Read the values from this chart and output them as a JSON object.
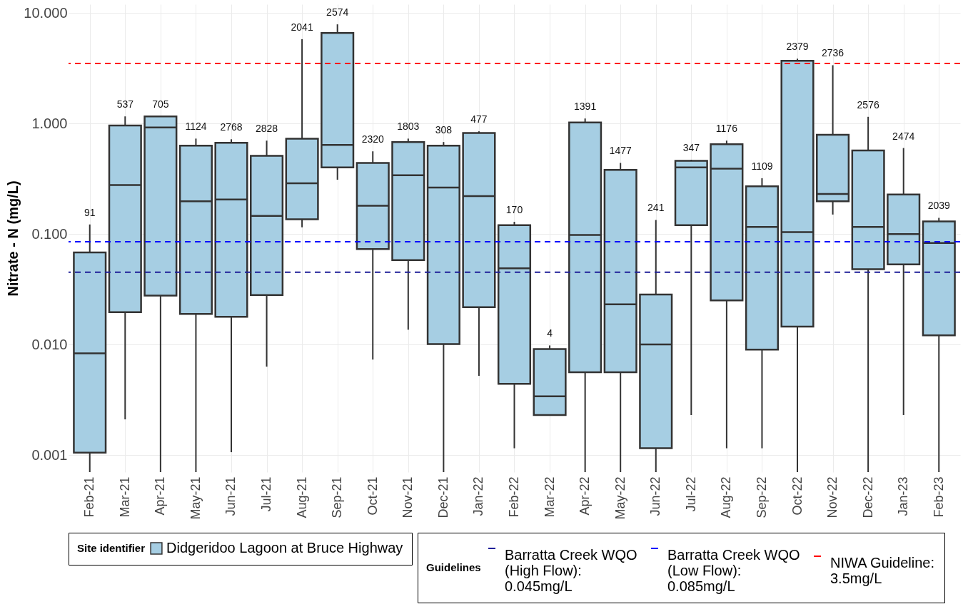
{
  "chart_data": {
    "type": "box",
    "ylabel": "Nitrate - N (mg/L)",
    "log": true,
    "grid": true,
    "legend": "bottom",
    "legend_title": "Site identifier",
    "categories": [
      "Feb-21",
      "Mar-21",
      "Apr-21",
      "May-21",
      "Jun-21",
      "Jul-21",
      "Aug-21",
      "Sep-21",
      "Oct-21",
      "Nov-21",
      "Dec-21",
      "Jan-22",
      "Feb-22",
      "Mar-22",
      "Apr-22",
      "May-22",
      "Jun-22",
      "Jul-22",
      "Aug-22",
      "Sep-22",
      "Oct-22",
      "Nov-22",
      "Dec-22",
      "Jan-23",
      "Feb-23"
    ],
    "ylim": [
      0.0007,
      12
    ],
    "yticks": [
      {
        "value": 0.001,
        "label": "0.001"
      },
      {
        "value": 0.01,
        "label": "0.010"
      },
      {
        "value": 0.1,
        "label": "0.100"
      },
      {
        "value": 1,
        "label": "1.000"
      },
      {
        "value": 10,
        "label": "10.000"
      }
    ],
    "series": [
      {
        "name": "Didgeridoo Lagoon at Bruce Highway",
        "color": "#a6cee3",
        "boxes": [
          {
            "low": 0.0007,
            "q1": 0.00105,
            "median": 0.0083,
            "q3": 0.068,
            "high": 0.122
          },
          {
            "low": 0.0021,
            "q1": 0.0196,
            "median": 0.277,
            "q3": 0.96,
            "high": 1.16
          },
          {
            "low": 0.0007,
            "q1": 0.0277,
            "median": 0.92,
            "q3": 1.16,
            "high": 1.16
          },
          {
            "low": 0.0007,
            "q1": 0.0189,
            "median": 0.198,
            "q3": 0.63,
            "high": 0.73
          },
          {
            "low": 0.00106,
            "q1": 0.0178,
            "median": 0.205,
            "q3": 0.67,
            "high": 0.72
          },
          {
            "low": 0.0063,
            "q1": 0.028,
            "median": 0.146,
            "q3": 0.51,
            "high": 0.7
          },
          {
            "low": 0.115,
            "q1": 0.136,
            "median": 0.288,
            "q3": 0.73,
            "high": 5.8
          },
          {
            "low": 0.31,
            "q1": 0.4,
            "median": 0.64,
            "q3": 6.6,
            "high": 7.9
          },
          {
            "low": 0.0073,
            "q1": 0.073,
            "median": 0.18,
            "q3": 0.44,
            "high": 0.56
          },
          {
            "low": 0.0136,
            "q1": 0.058,
            "median": 0.34,
            "q3": 0.68,
            "high": 0.73
          },
          {
            "low": 0.0007,
            "q1": 0.0101,
            "median": 0.263,
            "q3": 0.63,
            "high": 0.68
          },
          {
            "low": 0.0052,
            "q1": 0.0218,
            "median": 0.22,
            "q3": 0.82,
            "high": 0.85
          },
          {
            "low": 0.00115,
            "q1": 0.0044,
            "median": 0.049,
            "q3": 0.12,
            "high": 0.129
          },
          {
            "low": 0.0023,
            "q1": 0.0023,
            "median": 0.0034,
            "q3": 0.0091,
            "high": 0.0098
          },
          {
            "low": 0.0007,
            "q1": 0.0056,
            "median": 0.098,
            "q3": 1.02,
            "high": 1.11
          },
          {
            "low": 0.0007,
            "q1": 0.0056,
            "median": 0.0231,
            "q3": 0.38,
            "high": 0.44
          },
          {
            "low": 0.0007,
            "q1": 0.00115,
            "median": 0.01,
            "q3": 0.0283,
            "high": 0.134
          },
          {
            "low": 0.0023,
            "q1": 0.12,
            "median": 0.4,
            "q3": 0.46,
            "high": 0.47
          },
          {
            "low": 0.00115,
            "q1": 0.0251,
            "median": 0.39,
            "q3": 0.65,
            "high": 0.7
          },
          {
            "low": 0.00115,
            "q1": 0.009,
            "median": 0.116,
            "q3": 0.27,
            "high": 0.32
          },
          {
            "low": 0.0007,
            "q1": 0.0145,
            "median": 0.104,
            "q3": 3.7,
            "high": 3.86
          },
          {
            "low": 0.15,
            "q1": 0.198,
            "median": 0.23,
            "q3": 0.79,
            "high": 3.37
          },
          {
            "low": 0.0007,
            "q1": 0.048,
            "median": 0.116,
            "q3": 0.57,
            "high": 1.15
          },
          {
            "low": 0.0023,
            "q1": 0.053,
            "median": 0.1,
            "q3": 0.228,
            "high": 0.6
          },
          {
            "low": 0.0007,
            "q1": 0.0121,
            "median": 0.083,
            "q3": 0.13,
            "high": 0.14
          }
        ]
      }
    ],
    "ref_lines": [
      {
        "axis": "y",
        "value": 0.045,
        "label": "Barratta Creek WQO (High Flow): 0.045mg/L",
        "color": "#1f1f99",
        "line_style": "dashed"
      },
      {
        "axis": "y",
        "value": 0.085,
        "label": "Barratta Creek WQO (Low Flow): 0.085mg/L",
        "color": "#0000ff",
        "line_style": "dashed"
      },
      {
        "axis": "y",
        "value": 3.5,
        "label": "NIWA Guideline: 3.5mg/L",
        "color": "#ff0000",
        "line_style": "dashed"
      }
    ],
    "annotations": [
      "Guidelines",
      {
        "text": "91",
        "x": "Feb-21",
        "y": 0.122
      },
      {
        "text": "537",
        "x": "Mar-21",
        "y": 1.16
      },
      {
        "text": "705",
        "x": "Apr-21",
        "y": 1.16
      },
      {
        "text": "1124",
        "x": "May-21",
        "y": 0.73
      },
      {
        "text": "2768",
        "x": "Jun-21",
        "y": 0.72
      },
      {
        "text": "2828",
        "x": "Jul-21",
        "y": 0.7
      },
      {
        "text": "2041",
        "x": "Aug-21",
        "y": 5.8
      },
      {
        "text": "2574",
        "x": "Sep-21",
        "y": 7.9
      },
      {
        "text": "2320",
        "x": "Oct-21",
        "y": 0.56
      },
      {
        "text": "1803",
        "x": "Nov-21",
        "y": 0.73
      },
      {
        "text": "308",
        "x": "Dec-21",
        "y": 0.68
      },
      {
        "text": "477",
        "x": "Jan-22",
        "y": 0.85
      },
      {
        "text": "170",
        "x": "Feb-22",
        "y": 0.129
      },
      {
        "text": "4",
        "x": "Mar-22",
        "y": 0.0098
      },
      {
        "text": "1391",
        "x": "Apr-22",
        "y": 1.11
      },
      {
        "text": "1477",
        "x": "May-22",
        "y": 0.44
      },
      {
        "text": "241",
        "x": "Jun-22",
        "y": 0.134
      },
      {
        "text": "347",
        "x": "Jul-22",
        "y": 0.47
      },
      {
        "text": "1176",
        "x": "Aug-22",
        "y": 0.7
      },
      {
        "text": "1109",
        "x": "Sep-22",
        "y": 0.32
      },
      {
        "text": "2379",
        "x": "Oct-22",
        "y": 3.86
      },
      {
        "text": "2736",
        "x": "Nov-22",
        "y": 3.37
      },
      {
        "text": "2576",
        "x": "Dec-22",
        "y": 1.15
      },
      {
        "text": "2474",
        "x": "Jan-23",
        "y": 0.6
      },
      {
        "text": "2039",
        "x": "Feb-23",
        "y": 0.14
      }
    ]
  }
}
